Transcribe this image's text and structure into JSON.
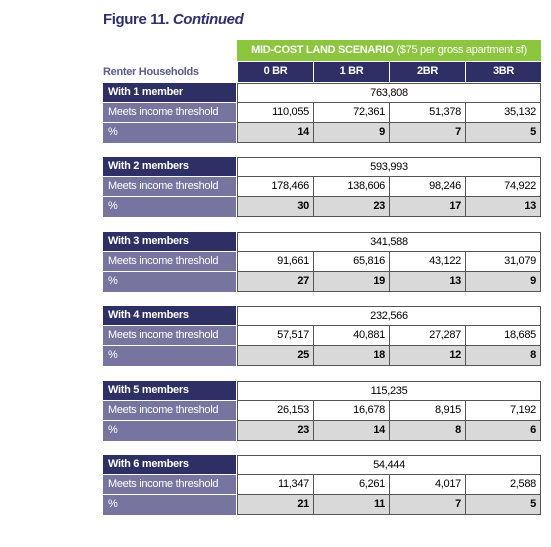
{
  "title": {
    "figure": "Figure 11.",
    "continued": "Continued"
  },
  "table": {
    "scenario": "MID-COST LAND SCENARIO",
    "scenario_note": "($75 per gross apartment sf)",
    "row_header": "Renter Households",
    "columns": [
      "0 BR",
      "1 BR",
      "2BR",
      "3BR"
    ],
    "groups": [
      {
        "name": "With 1 member",
        "total": "763,808",
        "meets_label": "Meets income threshold",
        "meets": [
          "110,055",
          "72,361",
          "51,378",
          "35,132"
        ],
        "pct_label": "%",
        "pct": [
          "14",
          "9",
          "7",
          "5"
        ]
      },
      {
        "name": "With 2 members",
        "total": "593,993",
        "meets_label": "Meets income threshold",
        "meets": [
          "178,466",
          "138,606",
          "98,246",
          "74,922"
        ],
        "pct_label": "%",
        "pct": [
          "30",
          "23",
          "17",
          "13"
        ]
      },
      {
        "name": "With 3 members",
        "total": "341,588",
        "meets_label": "Meets income threshold",
        "meets": [
          "91,661",
          "65,816",
          "43,122",
          "31,079"
        ],
        "pct_label": "%",
        "pct": [
          "27",
          "19",
          "13",
          "9"
        ]
      },
      {
        "name": "With 4 members",
        "total": "232,566",
        "meets_label": "Meets income threshold",
        "meets": [
          "57,517",
          "40,881",
          "27,287",
          "18,685"
        ],
        "pct_label": "%",
        "pct": [
          "25",
          "18",
          "12",
          "8"
        ]
      },
      {
        "name": "With 5 members",
        "total": "115,235",
        "meets_label": "Meets income threshold",
        "meets": [
          "26,153",
          "16,678",
          "8,915",
          "7,192"
        ],
        "pct_label": "%",
        "pct": [
          "23",
          "14",
          "8",
          "6"
        ]
      },
      {
        "name": "With 6 members",
        "total": "54,444",
        "meets_label": "Meets income threshold",
        "meets": [
          "11,347",
          "6,261",
          "4,017",
          "2,588"
        ],
        "pct_label": "%",
        "pct": [
          "21",
          "11",
          "7",
          "5"
        ]
      }
    ]
  }
}
